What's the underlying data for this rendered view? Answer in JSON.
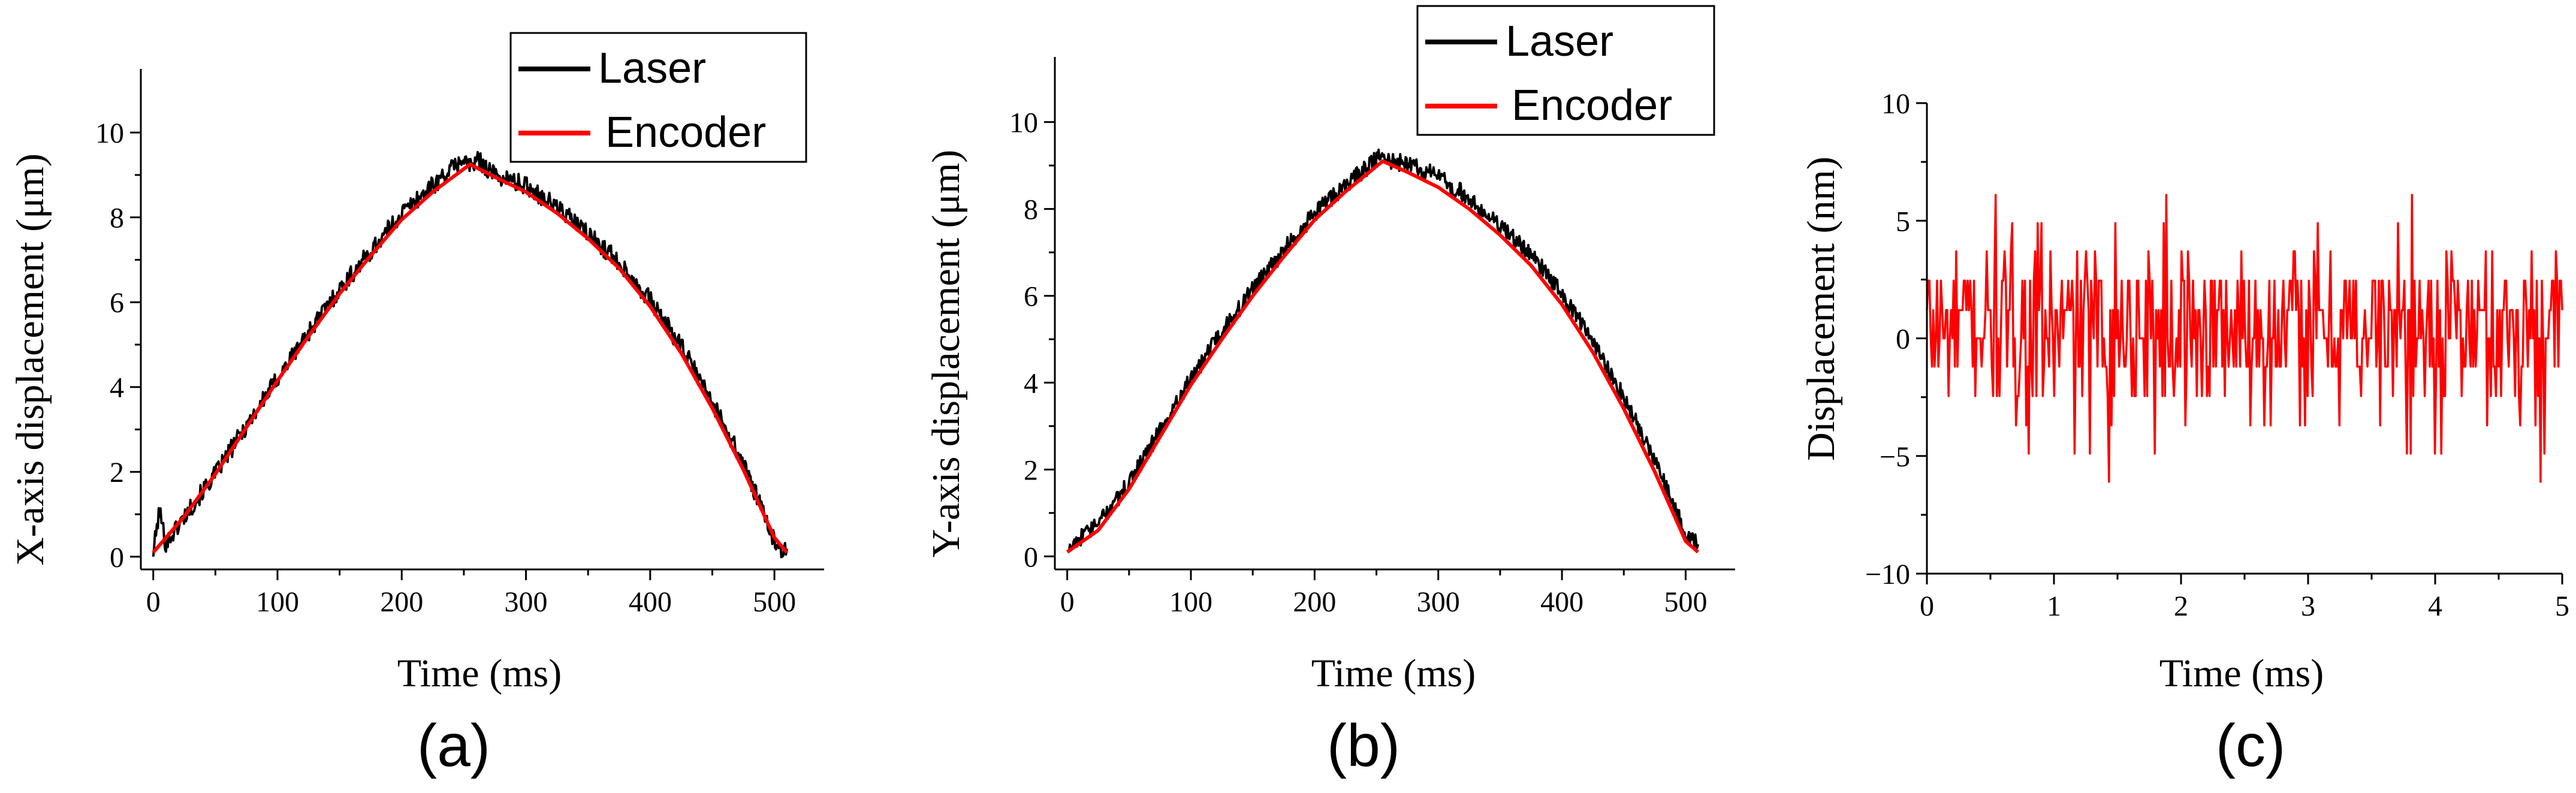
{
  "colors": {
    "laser": "#000000",
    "encoder": "#ff0000",
    "axis": "#000000"
  },
  "chart_data": [
    {
      "type": "line",
      "panel_label": "(a)",
      "xlabel": "Time (ms)",
      "ylabel": "X-axis displacement (μm)",
      "xlim": [
        -10,
        540
      ],
      "ylim": [
        -0.3,
        11.5
      ],
      "xticks": [
        0,
        100,
        200,
        300,
        400,
        500
      ],
      "yticks": [
        0,
        2,
        4,
        6,
        8,
        10
      ],
      "legend_position": "top-right",
      "series": [
        {
          "name": "Laser",
          "color": "#000000",
          "x": [
            0,
            5,
            10,
            25,
            50,
            75,
            100,
            125,
            150,
            175,
            200,
            225,
            250,
            255,
            262,
            275,
            300,
            325,
            350,
            375,
            400,
            425,
            450,
            475,
            500,
            510
          ],
          "y": [
            0.1,
            1.1,
            0.3,
            0.95,
            1.95,
            3.1,
            4.2,
            5.3,
            6.3,
            7.2,
            8.1,
            8.75,
            9.4,
            9.2,
            9.35,
            9.0,
            8.75,
            8.25,
            7.6,
            6.95,
            6.05,
            4.95,
            3.65,
            2.2,
            0.35,
            0.1
          ],
          "noise": 0.22
        },
        {
          "name": "Encoder",
          "color": "#ff0000",
          "x": [
            0,
            25,
            50,
            75,
            100,
            125,
            150,
            175,
            200,
            225,
            255,
            275,
            300,
            325,
            350,
            375,
            400,
            425,
            450,
            475,
            500,
            510
          ],
          "y": [
            0.1,
            0.95,
            1.95,
            3.05,
            4.15,
            5.2,
            6.2,
            7.1,
            7.95,
            8.6,
            9.25,
            8.95,
            8.6,
            8.1,
            7.5,
            6.8,
            5.9,
            4.8,
            3.5,
            2.05,
            0.45,
            0.1
          ]
        }
      ]
    },
    {
      "type": "line",
      "panel_label": "(b)",
      "xlabel": "Time (ms)",
      "ylabel": "Y-axis displacement (μm)",
      "xlim": [
        -10,
        540
      ],
      "ylim": [
        -0.3,
        11.5
      ],
      "xticks": [
        0,
        100,
        200,
        300,
        400,
        500
      ],
      "yticks": [
        0,
        2,
        4,
        6,
        8,
        10
      ],
      "legend_position": "top-right",
      "series": [
        {
          "name": "Laser",
          "color": "#000000",
          "x": [
            0,
            25,
            50,
            75,
            100,
            125,
            150,
            175,
            200,
            225,
            255,
            262,
            275,
            300,
            325,
            350,
            375,
            400,
            425,
            450,
            475,
            500,
            510
          ],
          "y": [
            0.2,
            0.75,
            1.7,
            2.9,
            4.1,
            5.15,
            6.15,
            7.05,
            7.9,
            8.55,
            9.25,
            9.1,
            9.05,
            8.75,
            8.25,
            7.6,
            6.95,
            6.05,
            4.95,
            3.65,
            2.2,
            0.5,
            0.25
          ],
          "noise": 0.2
        },
        {
          "name": "Encoder",
          "color": "#ff0000",
          "x": [
            0,
            25,
            50,
            75,
            100,
            125,
            150,
            175,
            200,
            225,
            255,
            275,
            300,
            325,
            350,
            375,
            400,
            425,
            450,
            475,
            500,
            510
          ],
          "y": [
            0.1,
            0.6,
            1.55,
            2.75,
            3.95,
            5.0,
            6.0,
            6.9,
            7.75,
            8.4,
            9.1,
            8.85,
            8.5,
            8.0,
            7.4,
            6.7,
            5.8,
            4.7,
            3.4,
            1.95,
            0.35,
            0.1
          ]
        }
      ]
    },
    {
      "type": "line",
      "panel_label": "(c)",
      "xlabel": "Time (ms)",
      "ylabel": "Displacement (nm)",
      "xlim": [
        0,
        5
      ],
      "ylim": [
        -10,
        10
      ],
      "xticks": [
        0,
        1,
        2,
        3,
        4,
        5
      ],
      "yticks": [
        -10,
        -5,
        0,
        5,
        10
      ],
      "ytick_labels": [
        "−10",
        "−5",
        "0",
        "5",
        "10"
      ],
      "series": [
        {
          "name": "Displacement",
          "color": "#ff0000",
          "samples": 500,
          "levels": [
            -6.1,
            -4.9,
            -3.7,
            -2.45,
            -1.2,
            0,
            1.2,
            2.45,
            3.7,
            4.9,
            6.1
          ],
          "level_weights": [
            0.008,
            0.015,
            0.035,
            0.08,
            0.17,
            0.22,
            0.22,
            0.17,
            0.05,
            0.024,
            0.008
          ]
        }
      ]
    }
  ],
  "legend": {
    "laser_label": "Laser",
    "encoder_label": "Encoder"
  }
}
